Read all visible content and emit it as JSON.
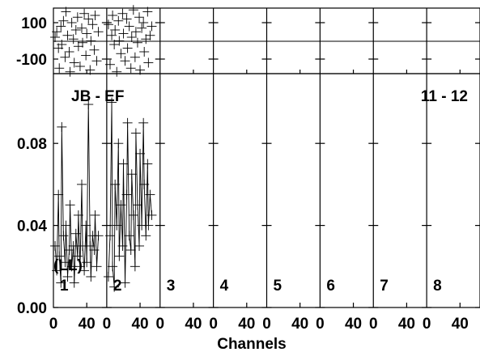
{
  "chart_data": {
    "type": "scatter",
    "baseline_label": "JB - EF",
    "scan_range": "11 - 12",
    "polarization_label": "(LL)",
    "xlabel": "Channels",
    "x_ticks": [
      0,
      40
    ],
    "x_range": [
      0,
      64
    ],
    "phase": {
      "y_ticks": [
        100,
        -100
      ],
      "y_tick_labels": [
        "100",
        "-100"
      ],
      "ylim": [
        -180,
        180
      ],
      "panels": [
        {
          "panel": "1",
          "x": [
            2,
            4,
            6,
            7,
            9,
            10,
            12,
            14,
            15,
            17,
            19,
            20,
            22,
            24,
            25,
            27,
            29,
            30,
            32,
            34,
            35,
            37,
            39,
            40,
            42,
            44,
            45,
            47,
            49,
            50,
            52,
            54
          ],
          "y": [
            20,
            50,
            -40,
            -150,
            80,
            -20,
            110,
            -90,
            160,
            30,
            -60,
            -170,
            100,
            10,
            -120,
            60,
            130,
            -30,
            -140,
            70,
            -10,
            150,
            -80,
            40,
            120,
            -160,
            0,
            90,
            -50,
            140,
            -110,
            50
          ]
        },
        {
          "panel": "2",
          "x": [
            2,
            4,
            6,
            7,
            9,
            10,
            12,
            14,
            15,
            17,
            19,
            20,
            22,
            24,
            25,
            27,
            29,
            30,
            32,
            34,
            35,
            37,
            39,
            40,
            42,
            44,
            45,
            47,
            49,
            50,
            52,
            54
          ],
          "y": [
            90,
            -130,
            30,
            140,
            -20,
            60,
            -170,
            110,
            0,
            -70,
            150,
            40,
            -110,
            120,
            -40,
            80,
            -150,
            20,
            170,
            -90,
            50,
            -10,
            130,
            -160,
            70,
            100,
            -60,
            10,
            160,
            -120,
            30,
            80
          ]
        }
      ]
    },
    "amplitude": {
      "y_ticks": [
        0.0,
        0.04,
        0.08
      ],
      "y_tick_labels": [
        "0.00",
        "0.04",
        "0.08"
      ],
      "ylim": [
        0,
        0.114
      ],
      "panels": [
        {
          "panel": "1",
          "x": [
            2,
            4,
            6,
            7,
            9,
            10,
            12,
            14,
            15,
            17,
            19,
            20,
            22,
            24,
            25,
            27,
            29,
            30,
            32,
            34,
            35,
            37,
            39,
            40,
            42,
            44,
            45,
            47,
            49,
            50,
            52,
            54
          ],
          "y": [
            0.03,
            0.018,
            0.055,
            0.025,
            0.012,
            0.088,
            0.035,
            0.022,
            0.04,
            0.015,
            0.028,
            0.05,
            0.02,
            0.03,
            0.012,
            0.036,
            0.025,
            0.045,
            0.02,
            0.06,
            0.03,
            0.018,
            0.04,
            0.022,
            0.099,
            0.03,
            0.015,
            0.035,
            0.028,
            0.045,
            0.02,
            0.035
          ]
        },
        {
          "panel": "2",
          "x": [
            2,
            4,
            6,
            7,
            9,
            10,
            12,
            14,
            15,
            17,
            19,
            20,
            22,
            24,
            25,
            27,
            29,
            30,
            32,
            34,
            35,
            37,
            39,
            40,
            42,
            44,
            45,
            47,
            49,
            50,
            52,
            54
          ],
          "y": [
            0.015,
            0.035,
            0.1,
            0.02,
            0.01,
            0.06,
            0.04,
            0.08,
            0.025,
            0.05,
            0.03,
            0.07,
            0.012,
            0.055,
            0.09,
            0.035,
            0.028,
            0.065,
            0.045,
            0.02,
            0.085,
            0.05,
            0.03,
            0.075,
            0.04,
            0.09,
            0.06,
            0.035,
            0.07,
            0.04,
            0.055,
            0.045
          ]
        }
      ]
    },
    "panel_labels": [
      "1",
      "2",
      "3",
      "4",
      "5",
      "6",
      "7",
      "8"
    ],
    "x_tick_labels": [
      "0",
      "40"
    ],
    "grid": false
  }
}
